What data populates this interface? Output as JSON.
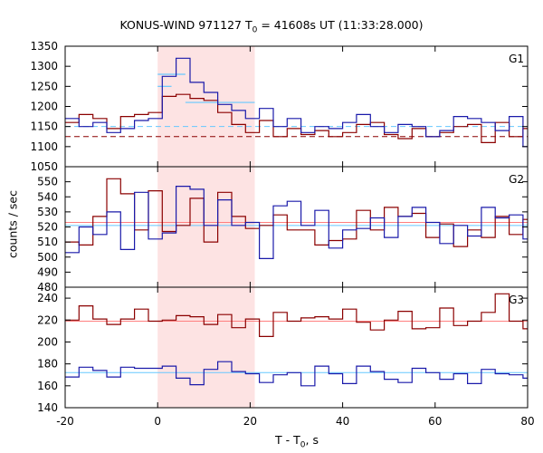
{
  "chart_data": {
    "type": "line",
    "title": "KONUS-WIND 971127 T0 = 41608s UT (11:33:28.000)",
    "title_parts": [
      "KONUS-WIND 971127 T",
      "0",
      " = 41608s UT (11:33:28.000)"
    ],
    "xlabel": "T - T0, s",
    "xlabel_parts": [
      "T - T",
      "0",
      ", s"
    ],
    "ylabel": "counts / sec",
    "xlim": [
      -20,
      80
    ],
    "x_ticks": [
      -20,
      0,
      20,
      40,
      60,
      80
    ],
    "highlight_interval": [
      0,
      21
    ],
    "colors": {
      "red_series": "#8b0000",
      "blue_series": "#1a1aaa",
      "red_background": "#ff7f7f",
      "blue_background": "#66c8ff",
      "highlight": "#fde3e3"
    },
    "panels": [
      {
        "label": "G1",
        "ylim": [
          1050,
          1350
        ],
        "y_ticks": [
          1050,
          1100,
          1150,
          1200,
          1250,
          1300,
          1350
        ],
        "bin_start": -20,
        "bin_width": 3,
        "red_values": [
          1160,
          1180,
          1170,
          1145,
          1175,
          1180,
          1185,
          1225,
          1230,
          1220,
          1215,
          1185,
          1155,
          1135,
          1165,
          1125,
          1145,
          1130,
          1140,
          1125,
          1135,
          1155,
          1160,
          1130,
          1120,
          1145,
          1125,
          1135,
          1150,
          1155,
          1110,
          1160,
          1125,
          1145
        ],
        "blue_values": [
          1170,
          1150,
          1160,
          1135,
          1145,
          1165,
          1170,
          1275,
          1320,
          1260,
          1235,
          1205,
          1190,
          1170,
          1195,
          1150,
          1170,
          1135,
          1150,
          1145,
          1160,
          1180,
          1150,
          1135,
          1155,
          1150,
          1125,
          1140,
          1175,
          1170,
          1160,
          1140,
          1175,
          1100
        ],
        "blue_background_level": 1150,
        "red_background_level": 1125,
        "dashed_backgrounds": true,
        "blue_fit_segments": [
          {
            "x": [
              0,
              3
            ],
            "y": 1250
          },
          {
            "x": [
              0,
              6
            ],
            "y": 1280
          },
          {
            "x": [
              6,
              21
            ],
            "y": 1210
          }
        ]
      },
      {
        "label": "G2",
        "ylim": [
          480,
          560
        ],
        "y_ticks": [
          480,
          490,
          500,
          510,
          520,
          530,
          540,
          550
        ],
        "bin_start": -20,
        "bin_width": 3,
        "red_values": [
          510,
          508,
          527,
          552,
          542,
          518,
          544,
          517,
          521,
          539,
          510,
          543,
          527,
          519,
          521,
          528,
          518,
          518,
          508,
          511,
          512,
          531,
          518,
          533,
          527,
          529,
          513,
          522,
          507,
          518,
          513,
          527,
          515,
          525
        ],
        "blue_values": [
          503,
          520,
          515,
          530,
          505,
          543,
          512,
          516,
          547,
          545,
          521,
          538,
          521,
          523,
          499,
          534,
          537,
          521,
          531,
          506,
          518,
          519,
          526,
          513,
          527,
          533,
          523,
          509,
          521,
          514,
          533,
          526,
          528,
          512
        ],
        "blue_background_level": 521,
        "red_background_level": 523,
        "dashed_backgrounds": false
      },
      {
        "label": "G3",
        "ylim": [
          140,
          250
        ],
        "y_ticks": [
          140,
          160,
          180,
          200,
          220,
          240
        ],
        "bin_start": -20,
        "bin_width": 3,
        "red_values": [
          220,
          233,
          221,
          216,
          221,
          230,
          219,
          220,
          224,
          223,
          216,
          225,
          213,
          221,
          205,
          227,
          219,
          222,
          223,
          221,
          230,
          218,
          211,
          220,
          228,
          212,
          213,
          231,
          215,
          219,
          227,
          244,
          219,
          212
        ],
        "blue_values": [
          168,
          177,
          174,
          168,
          177,
          176,
          176,
          178,
          167,
          161,
          175,
          182,
          173,
          171,
          163,
          170,
          172,
          160,
          178,
          171,
          162,
          178,
          173,
          166,
          163,
          176,
          172,
          166,
          171,
          162,
          175,
          171,
          170,
          167
        ],
        "blue_background_level": 172,
        "red_background_level": 219,
        "dashed_backgrounds": false
      }
    ]
  }
}
